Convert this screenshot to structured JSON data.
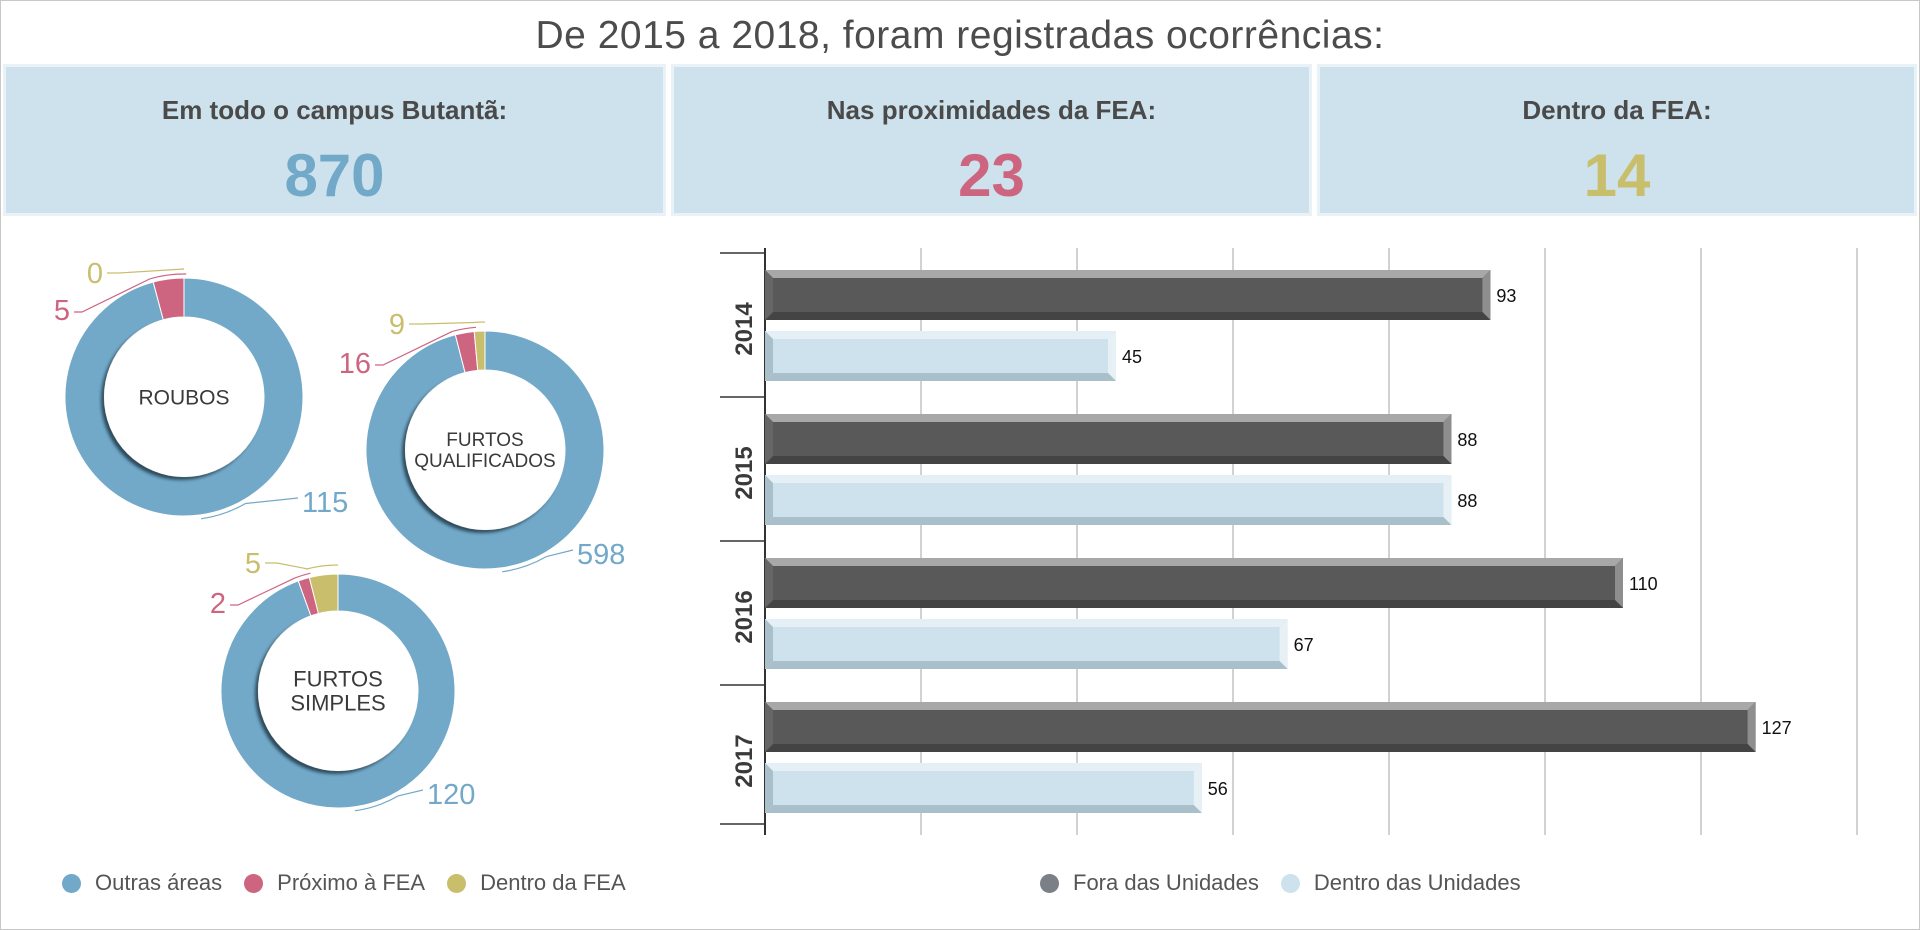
{
  "title": "De 2015 a 2018, foram registradas ocorrências:",
  "stats": [
    {
      "label": "Em todo o campus Butantã:",
      "value": "870",
      "color": "#72a9c9"
    },
    {
      "label": "Nas proximidades da FEA:",
      "value": "23",
      "color": "#cd6581"
    },
    {
      "label": "Dentro da FEA:",
      "value": "14",
      "color": "#c9be6c"
    }
  ],
  "colors": {
    "outras": "#72a9c9",
    "proximo": "#cd6581",
    "dentro": "#c9be6c",
    "fora_unidades": "#595959",
    "dentro_unidades": "#cde2ec"
  },
  "chart_data": [
    {
      "type": "pie",
      "title": "ROUBOS",
      "slices": [
        {
          "name": "Outras áreas",
          "value": 115
        },
        {
          "name": "Próximo à FEA",
          "value": 5
        },
        {
          "name": "Dentro da FEA",
          "value": 0
        }
      ]
    },
    {
      "type": "pie",
      "title": "FURTOS QUALIFICADOS",
      "slices": [
        {
          "name": "Outras áreas",
          "value": 598
        },
        {
          "name": "Próximo à FEA",
          "value": 16
        },
        {
          "name": "Dentro da FEA",
          "value": 9
        }
      ]
    },
    {
      "type": "pie",
      "title": "FURTOS SIMPLES",
      "slices": [
        {
          "name": "Outras áreas",
          "value": 120
        },
        {
          "name": "Próximo à FEA",
          "value": 2
        },
        {
          "name": "Dentro da FEA",
          "value": 5
        }
      ]
    },
    {
      "type": "bar",
      "orientation": "horizontal",
      "categories": [
        "2014",
        "2015",
        "2016",
        "2017"
      ],
      "series": [
        {
          "name": "Fora das Unidades",
          "values": [
            93,
            88,
            110,
            127
          ]
        },
        {
          "name": "Dentro das Unidades",
          "values": [
            45,
            88,
            67,
            56
          ]
        }
      ],
      "xlim": [
        0,
        140
      ],
      "grid": true,
      "legend": "bottom"
    }
  ],
  "legends": {
    "donut": [
      "Outras áreas",
      "Próximo à FEA",
      "Dentro da FEA"
    ],
    "bar": [
      "Fora das Unidades",
      "Dentro das Unidades"
    ]
  }
}
